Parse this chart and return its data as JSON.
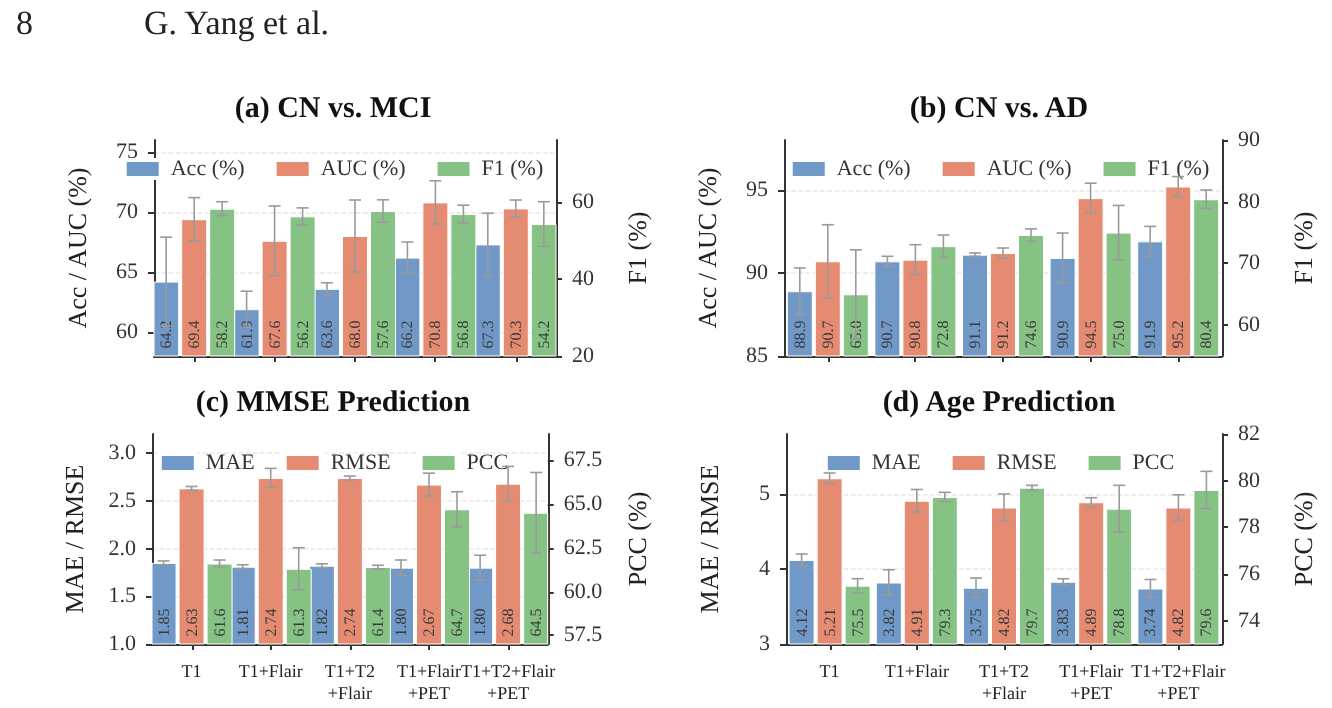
{
  "chart_data": [
    {
      "type": "bar",
      "title": "(a) CN vs. MCI",
      "annotations": [
        "8",
        "G. Yang et al."
      ],
      "ylabel": "Acc / AUC (%)",
      "y2label": "F1 (%)",
      "categories": [
        null,
        null,
        null,
        null,
        null
      ],
      "ylim": [
        58,
        76
      ],
      "yticks": [
        60,
        65,
        70,
        75
      ],
      "y2lim": [
        20,
        76
      ],
      "y2ticks": [
        20,
        40,
        60
      ],
      "grid": "y",
      "legend": "top",
      "series": [
        {
          "name": "Acc (%)",
          "color": "#7099c8",
          "values": [
            64.2,
            61.9,
            63.6,
            66.2,
            67.3
          ],
          "errors": [
            3.7,
            1.5,
            0.5,
            1.3,
            2.6
          ],
          "value_labels": [
            "64.2",
            "61.9",
            "63.6",
            "66.2",
            "67.3"
          ]
        },
        {
          "name": "AUC (%)",
          "color": "#e58b72",
          "values": [
            69.4,
            67.6,
            68.0,
            70.8,
            70.3
          ],
          "errors": [
            1.8,
            2.9,
            3.0,
            1.8,
            0.7
          ],
          "value_labels": [
            "69.4",
            "67.6",
            "68.0",
            "70.8",
            "70.3"
          ]
        },
        {
          "name": "F1 (%)",
          "color": "#87c285",
          "axis": "y2",
          "values": [
            58.2,
            56.2,
            57.6,
            56.8,
            54.2
          ],
          "errors": [
            1.8,
            2.2,
            2.9,
            2.3,
            5.8
          ],
          "value_labels": [
            "58.2",
            "56.2",
            "57.6",
            "56.8",
            "54.2"
          ]
        }
      ]
    },
    {
      "type": "bar",
      "title": "(b) CN vs. AD",
      "ylabel": "Acc / AUC (%)",
      "y2label": "F1 (%)",
      "categories": [
        null,
        null,
        null,
        null,
        null
      ],
      "ylim": [
        85,
        98
      ],
      "yticks": [
        85,
        90,
        95
      ],
      "y2lim": [
        55,
        90
      ],
      "y2ticks": [
        60,
        70,
        80,
        90
      ],
      "grid": "y",
      "legend": "top",
      "series": [
        {
          "name": "Acc (%)",
          "color": "#7099c8",
          "values": [
            88.9,
            90.7,
            91.1,
            90.9,
            91.9
          ],
          "errors": [
            1.4,
            0.3,
            0.1,
            1.5,
            0.9
          ],
          "value_labels": [
            "88.9",
            "90.7",
            "91.1",
            "90.9",
            "91.9"
          ]
        },
        {
          "name": "AUC (%)",
          "color": "#e58b72",
          "values": [
            90.7,
            90.8,
            91.2,
            94.5,
            95.2
          ],
          "errors": [
            2.2,
            0.9,
            0.3,
            0.9,
            0.6
          ],
          "value_labels": [
            "90.7",
            "90.8",
            "91.2",
            "94.5",
            "95.2"
          ]
        },
        {
          "name": "F1 (%)",
          "color": "#87c285",
          "axis": "y2",
          "values": [
            65.0,
            72.8,
            74.6,
            75.0,
            80.4
          ],
          "errors": [
            7.2,
            1.8,
            1.0,
            4.4,
            1.5
          ],
          "value_labels": [
            "65.0",
            "72.8",
            "74.6",
            "75.0",
            "80.4"
          ]
        }
      ]
    },
    {
      "type": "bar",
      "title": "(c) MMSE Prediction",
      "ylabel": "MAE / RMSE",
      "y2label": "PCC (%)",
      "categories": [
        "T1",
        "T1+Flair",
        "T1+T2\n+Flair",
        "T1+Flair\n+PET",
        "T1+T2+Flair\n+PET"
      ],
      "ylim": [
        1,
        3.2
      ],
      "yticks": [
        {
          "value": 1,
          "label": "1.0"
        },
        1.5,
        {
          "value": 2,
          "label": "2.0"
        },
        2.5,
        {
          "value": 3,
          "label": "3.0"
        }
      ],
      "y2lim": [
        57,
        69
      ],
      "y2ticks": [
        57.5,
        {
          "value": 60,
          "label": "60.0"
        },
        62.5,
        {
          "value": 65,
          "label": "65.0"
        },
        67.5
      ],
      "grid": "y",
      "legend": "top",
      "series": [
        {
          "name": "MAE",
          "color": "#7099c8",
          "values": [
            1.85,
            1.81,
            1.82,
            1.8,
            1.8
          ],
          "errors": [
            0.02,
            0.02,
            0.02,
            0.08,
            0.13
          ],
          "value_labels": [
            "1.85",
            "1.81",
            "1.82",
            "1.80",
            "1.80"
          ]
        },
        {
          "name": "RMSE",
          "color": "#e58b72",
          "values": [
            2.63,
            2.74,
            2.74,
            2.67,
            2.68
          ],
          "errors": [
            0.02,
            0.1,
            0.02,
            0.12,
            0.18
          ],
          "value_labels": [
            "2.63",
            "2.74",
            "2.74",
            "2.67",
            "2.68"
          ]
        },
        {
          "name": "PCC",
          "color": "#87c285",
          "axis": "y2",
          "values": [
            61.6,
            61.3,
            61.4,
            64.7,
            64.5
          ],
          "errors": [
            0.2,
            1.2,
            0.1,
            1.0,
            2.3
          ],
          "value_labels": [
            "61.6",
            "61.3",
            "61.4",
            "64.7",
            "64.5"
          ]
        }
      ]
    },
    {
      "type": "bar",
      "title": "(d) Age Prediction",
      "ylabel": "MAE / RMSE",
      "y2label": "PCC (%)",
      "categories": [
        "T1",
        "T1+Flair",
        "T1+T2\n+Flair",
        "T1+Flair\n+PET",
        "T1+T2+Flair\n+PET"
      ],
      "ylim": [
        3,
        5.8
      ],
      "yticks": [
        3,
        4,
        5
      ],
      "y2lim": [
        73,
        82
      ],
      "y2ticks": [
        74,
        76,
        78,
        80,
        82
      ],
      "grid": "y",
      "legend": "top",
      "series": [
        {
          "name": "MAE",
          "color": "#7099c8",
          "values": [
            4.12,
            3.82,
            3.75,
            3.83,
            3.74
          ],
          "errors": [
            0.08,
            0.17,
            0.13,
            0.04,
            0.12
          ],
          "value_labels": [
            "4.12",
            "3.82",
            "3.75",
            "3.83",
            "3.74"
          ]
        },
        {
          "name": "RMSE",
          "color": "#e58b72",
          "values": [
            5.21,
            4.91,
            4.82,
            4.89,
            4.82
          ],
          "errors": [
            0.07,
            0.15,
            0.18,
            0.06,
            0.17
          ],
          "value_labels": [
            "5.21",
            "4.91",
            "4.82",
            "4.89",
            "4.82"
          ]
        },
        {
          "name": "PCC",
          "color": "#87c285",
          "axis": "y2",
          "values": [
            75.5,
            79.3,
            79.7,
            78.8,
            79.6
          ],
          "errors": [
            0.3,
            0.2,
            0.1,
            1.0,
            0.8
          ],
          "value_labels": [
            "75.5",
            "79.3",
            "79.7",
            "78.8",
            "79.6"
          ]
        }
      ]
    }
  ]
}
